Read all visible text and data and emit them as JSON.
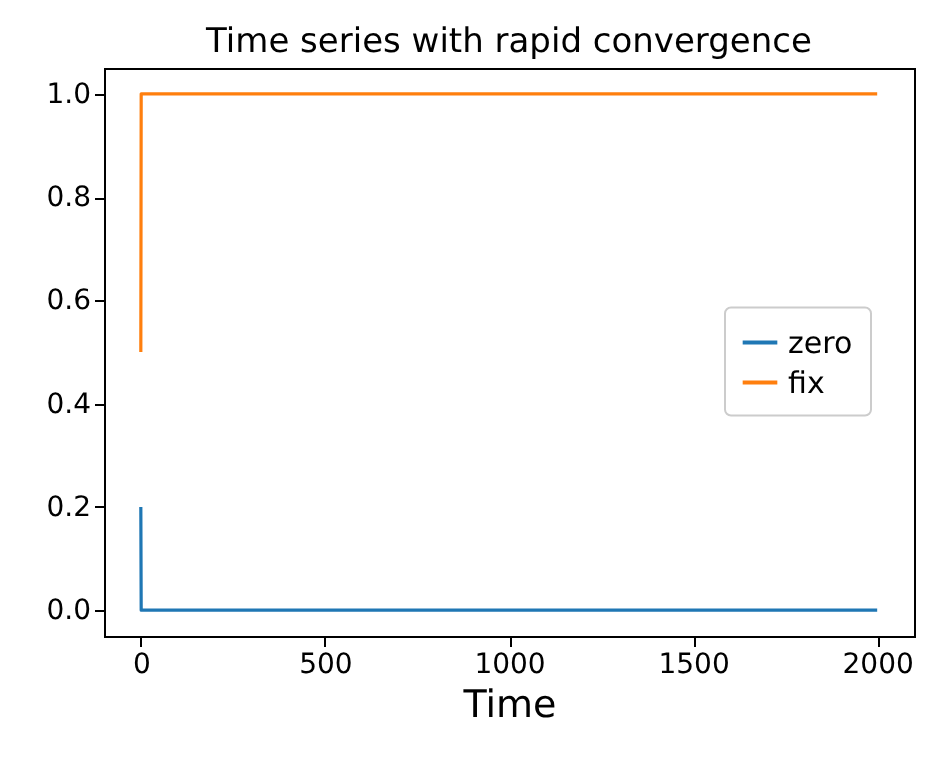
{
  "chart_data": {
    "type": "line",
    "title": "Time series with rapid convergence",
    "xlabel": "Time",
    "xlim": [
      -100,
      2100
    ],
    "xticks": [
      0,
      500,
      1000,
      1500,
      2000
    ],
    "ylim": [
      -0.05,
      1.05
    ],
    "yticks": [
      {
        "value": 0,
        "label": "0.0"
      },
      0.2,
      0.4,
      0.6,
      0.8,
      {
        "value": 1,
        "label": "1.0"
      }
    ],
    "legend": "right",
    "grid": false,
    "series": [
      {
        "name": "zero",
        "color": "#1f77b4",
        "x": [
          0,
          1,
          2000
        ],
        "values": [
          0.2,
          0,
          0
        ]
      },
      {
        "name": "fix",
        "color": "#ff7f0e",
        "x": [
          0,
          1,
          2000
        ],
        "values": [
          0.5,
          1,
          1
        ]
      }
    ]
  }
}
